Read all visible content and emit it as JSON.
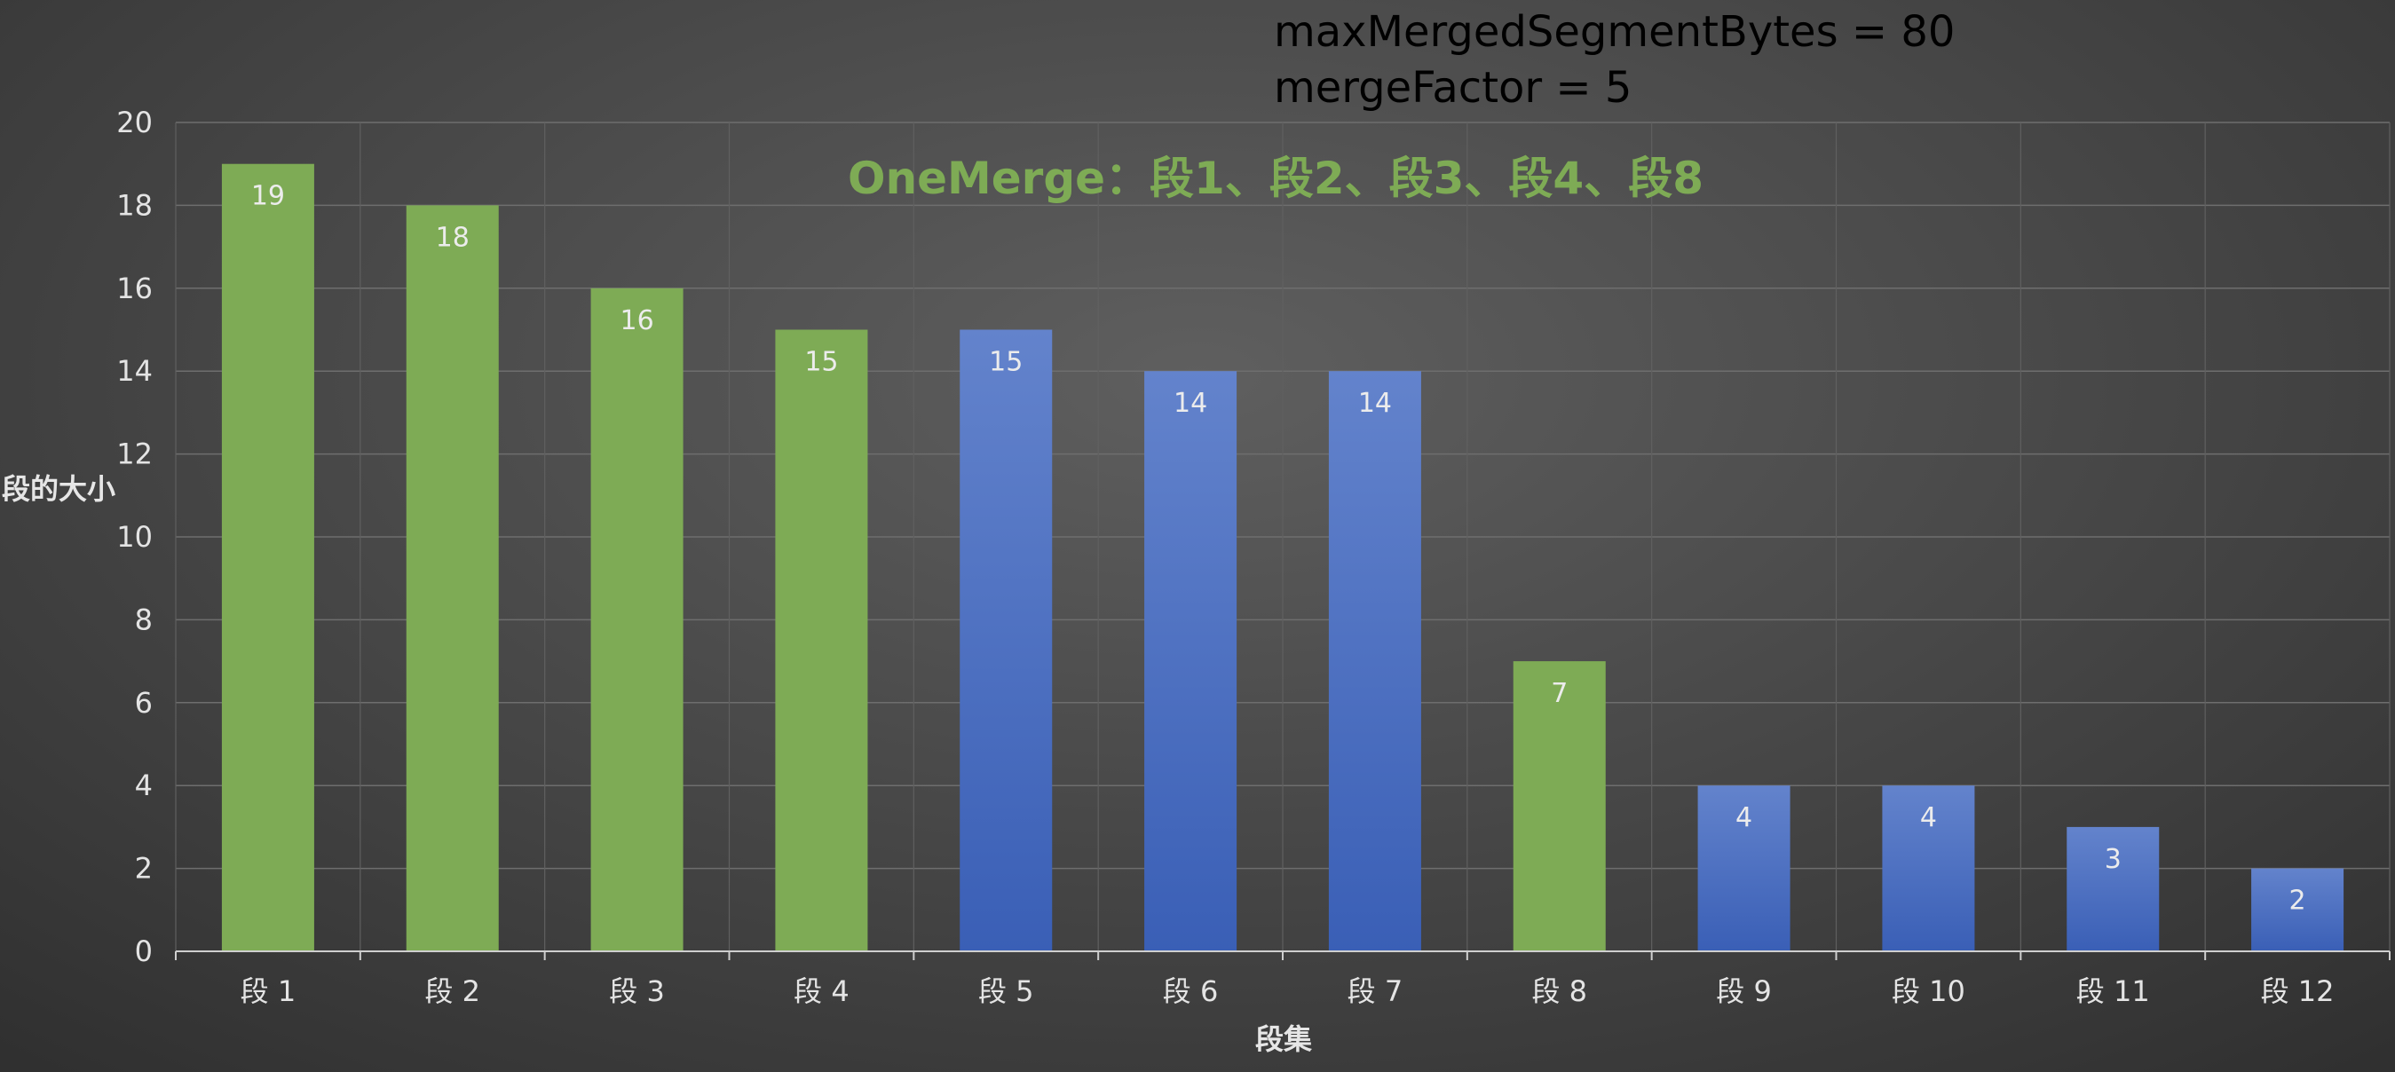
{
  "header": {
    "params": [
      "maxMergedSegmentBytes = 80",
      "mergeFactor = 5"
    ]
  },
  "chart_data": {
    "type": "bar",
    "annotation": "OneMerge：段1、段2、段3、段4、段8",
    "xlabel": "段集",
    "ylabel": "段的大小",
    "ylim": [
      0,
      20
    ],
    "yticks": [
      0,
      2,
      4,
      6,
      8,
      10,
      12,
      14,
      16,
      18,
      20
    ],
    "grid": true,
    "categories": [
      "段 1",
      "段 2",
      "段 3",
      "段 4",
      "段 5",
      "段 6",
      "段 7",
      "段 8",
      "段 9",
      "段 10",
      "段 11",
      "段 12"
    ],
    "values": [
      19,
      18,
      16,
      15,
      15,
      14,
      14,
      7,
      4,
      4,
      3,
      2
    ],
    "selected": [
      true,
      true,
      true,
      true,
      false,
      false,
      false,
      true,
      false,
      false,
      false,
      false
    ],
    "colors": {
      "selected": "#7eab55",
      "unselected_top": "#6383cc",
      "unselected_bottom": "#3a5fb6",
      "annotation": "#7eab55"
    }
  }
}
